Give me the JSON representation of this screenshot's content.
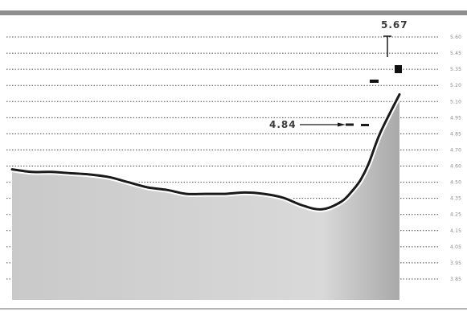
{
  "chart_data": {
    "type": "area",
    "title": "",
    "xlabel": "",
    "ylabel": "",
    "grid": true,
    "y_tick_labels": [
      "5.60",
      "5.45",
      "5.35",
      "5.20",
      "5.10",
      "4.95",
      "4.85",
      "4.70",
      "4.60",
      "4.50",
      "4.35",
      "4.25",
      "4.15",
      "4.05",
      "3.95",
      "3.85"
    ],
    "ylim": [
      3.77,
      5.67
    ],
    "x": [
      0,
      0.05,
      0.1,
      0.15,
      0.2,
      0.25,
      0.3,
      0.35,
      0.4,
      0.45,
      0.5,
      0.55,
      0.6,
      0.65,
      0.7,
      0.75,
      0.8,
      0.85,
      0.88,
      0.9,
      0.92,
      0.95,
      1.0
    ],
    "values": [
      4.62,
      4.6,
      4.6,
      4.59,
      4.58,
      4.56,
      4.52,
      4.48,
      4.46,
      4.43,
      4.43,
      4.43,
      4.44,
      4.43,
      4.4,
      4.34,
      4.31,
      4.37,
      4.46,
      4.54,
      4.66,
      4.9,
      5.2
    ],
    "series_color": "#1a1a1a",
    "area_color": "#bdbdbd",
    "annotations": [
      {
        "label": "5.67",
        "value": 5.67
      },
      {
        "label": "4.84",
        "value": 4.84
      }
    ]
  }
}
